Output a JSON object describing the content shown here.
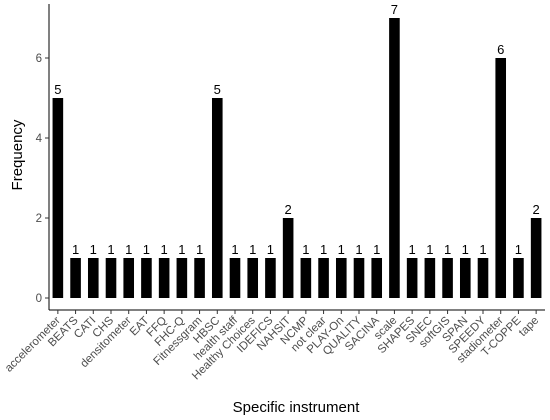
{
  "chart_data": {
    "type": "bar",
    "xlabel": "Specific instrument",
    "ylabel": "Frequency",
    "ylim": [
      -0.3,
      7.35
    ],
    "yticks": [
      0,
      2,
      4,
      6
    ],
    "grid": false,
    "bar_color": "#000000",
    "categories": [
      "accelerometer",
      "BEATS",
      "CATI",
      "CHS",
      "densitometer",
      "EAT",
      "FFQ",
      "FHC-Q",
      "Fitnessgram",
      "HBSC",
      "health staff",
      "Healthy Choices",
      "IDEFICS",
      "NAHSIT",
      "NCMP",
      "not clear",
      "PLAY-On",
      "QUALITY",
      "SACINA",
      "scale",
      "SHAPES",
      "SNEC",
      "softGIS",
      "SPAN",
      "SPEEDY",
      "stadiometer",
      "T-COPPE",
      "tape"
    ],
    "values": [
      5,
      1,
      1,
      1,
      1,
      1,
      1,
      1,
      1,
      5,
      1,
      1,
      1,
      2,
      1,
      1,
      1,
      1,
      1,
      7,
      1,
      1,
      1,
      1,
      1,
      6,
      1,
      2
    ]
  }
}
